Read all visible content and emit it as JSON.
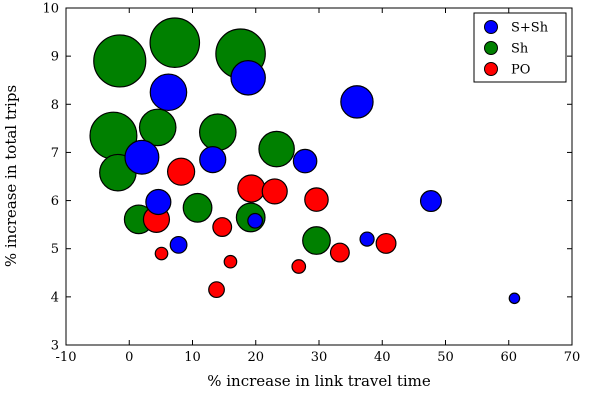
{
  "chart_data": {
    "type": "scatter",
    "title": "",
    "xlabel": "% increase in link travel time",
    "ylabel": "% increase in total trips",
    "xlim": [
      -10,
      70
    ],
    "ylim": [
      3,
      10
    ],
    "x_ticks": [
      -10,
      0,
      10,
      20,
      30,
      40,
      50,
      60,
      70
    ],
    "y_ticks": [
      3,
      4,
      5,
      6,
      7,
      8,
      9,
      10
    ],
    "x_tick_labels": [
      "-10",
      "0",
      "10",
      "20",
      "30",
      "40",
      "50",
      "60",
      "70"
    ],
    "y_tick_labels": [
      "3",
      "4",
      "5",
      "6",
      "7",
      "8",
      "9",
      "10"
    ],
    "grid": false,
    "legend": {
      "placement": "top-right"
    },
    "marker_size_encoding": "relative bubble size",
    "series": [
      {
        "name": "S+Sh",
        "color": "#0000ff",
        "points": [
          {
            "x": 6.2,
            "y": 8.25,
            "size": 0.7
          },
          {
            "x": 18.8,
            "y": 8.55,
            "size": 0.66
          },
          {
            "x": 36,
            "y": 8.05,
            "size": 0.62
          },
          {
            "x": 2.0,
            "y": 6.9,
            "size": 0.65
          },
          {
            "x": 13.2,
            "y": 6.85,
            "size": 0.5
          },
          {
            "x": 27.8,
            "y": 6.82,
            "size": 0.45
          },
          {
            "x": 4.6,
            "y": 5.97,
            "size": 0.48
          },
          {
            "x": 47.7,
            "y": 5.99,
            "size": 0.4
          },
          {
            "x": 19.9,
            "y": 5.58,
            "size": 0.28
          },
          {
            "x": 7.8,
            "y": 5.08,
            "size": 0.32
          },
          {
            "x": 37.6,
            "y": 5.2,
            "size": 0.27
          },
          {
            "x": 60.9,
            "y": 3.97,
            "size": 0.2
          }
        ]
      },
      {
        "name": "Sh",
        "color": "#008000",
        "points": [
          {
            "x": -1.5,
            "y": 8.9,
            "size": 1.0
          },
          {
            "x": 7.2,
            "y": 9.28,
            "size": 0.95
          },
          {
            "x": 17.6,
            "y": 9.05,
            "size": 0.95
          },
          {
            "x": -2.5,
            "y": 7.35,
            "size": 0.9
          },
          {
            "x": 4.5,
            "y": 7.52,
            "size": 0.7
          },
          {
            "x": 14.0,
            "y": 7.42,
            "size": 0.7
          },
          {
            "x": 23.3,
            "y": 7.07,
            "size": 0.68
          },
          {
            "x": -1.8,
            "y": 6.58,
            "size": 0.7
          },
          {
            "x": 1.5,
            "y": 5.61,
            "size": 0.55
          },
          {
            "x": 10.8,
            "y": 5.85,
            "size": 0.55
          },
          {
            "x": 19.2,
            "y": 5.65,
            "size": 0.55
          },
          {
            "x": 29.6,
            "y": 5.17,
            "size": 0.53
          }
        ]
      },
      {
        "name": "PO",
        "color": "#ff0000",
        "points": [
          {
            "x": 8.2,
            "y": 6.6,
            "size": 0.52
          },
          {
            "x": 19.3,
            "y": 6.25,
            "size": 0.52
          },
          {
            "x": 23.0,
            "y": 6.19,
            "size": 0.48
          },
          {
            "x": 29.6,
            "y": 6.02,
            "size": 0.45
          },
          {
            "x": 4.3,
            "y": 5.61,
            "size": 0.5
          },
          {
            "x": 14.7,
            "y": 5.45,
            "size": 0.36
          },
          {
            "x": 33.3,
            "y": 4.92,
            "size": 0.36
          },
          {
            "x": 40.6,
            "y": 5.11,
            "size": 0.38
          },
          {
            "x": 5.1,
            "y": 4.9,
            "size": 0.24
          },
          {
            "x": 16.0,
            "y": 4.73,
            "size": 0.24
          },
          {
            "x": 26.8,
            "y": 4.63,
            "size": 0.26
          },
          {
            "x": 13.8,
            "y": 4.15,
            "size": 0.3
          }
        ]
      }
    ]
  }
}
